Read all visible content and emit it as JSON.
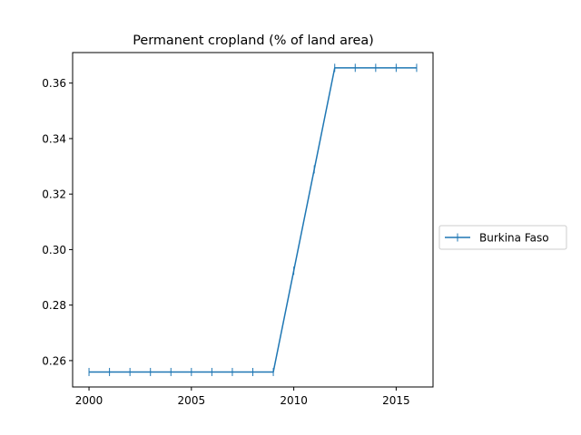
{
  "chart_data": {
    "type": "line",
    "title": "Permanent cropland (% of land area)",
    "xlabel": "",
    "ylabel": "",
    "xlim": [
      1999.2,
      2016.8
    ],
    "ylim": [
      0.2505,
      0.371
    ],
    "x_ticks": [
      2000,
      2005,
      2010,
      2015
    ],
    "y_ticks": [
      0.26,
      0.28,
      0.3,
      0.32,
      0.34,
      0.36
    ],
    "y_tick_labels": [
      "0.26",
      "0.28",
      "0.30",
      "0.32",
      "0.34",
      "0.36"
    ],
    "grid": false,
    "legend_position": "right",
    "series": [
      {
        "name": "Burkina Faso",
        "color": "#1f77b4",
        "marker": "vertical-tick",
        "x": [
          2000,
          2001,
          2002,
          2003,
          2004,
          2005,
          2006,
          2007,
          2008,
          2009,
          2010,
          2011,
          2012,
          2013,
          2014,
          2015,
          2016
        ],
        "y": [
          0.2559,
          0.2559,
          0.2559,
          0.2559,
          0.2559,
          0.2559,
          0.2559,
          0.2559,
          0.2559,
          0.2559,
          0.2924,
          0.3289,
          0.3655,
          0.3655,
          0.3655,
          0.3655,
          0.3655
        ]
      }
    ]
  }
}
